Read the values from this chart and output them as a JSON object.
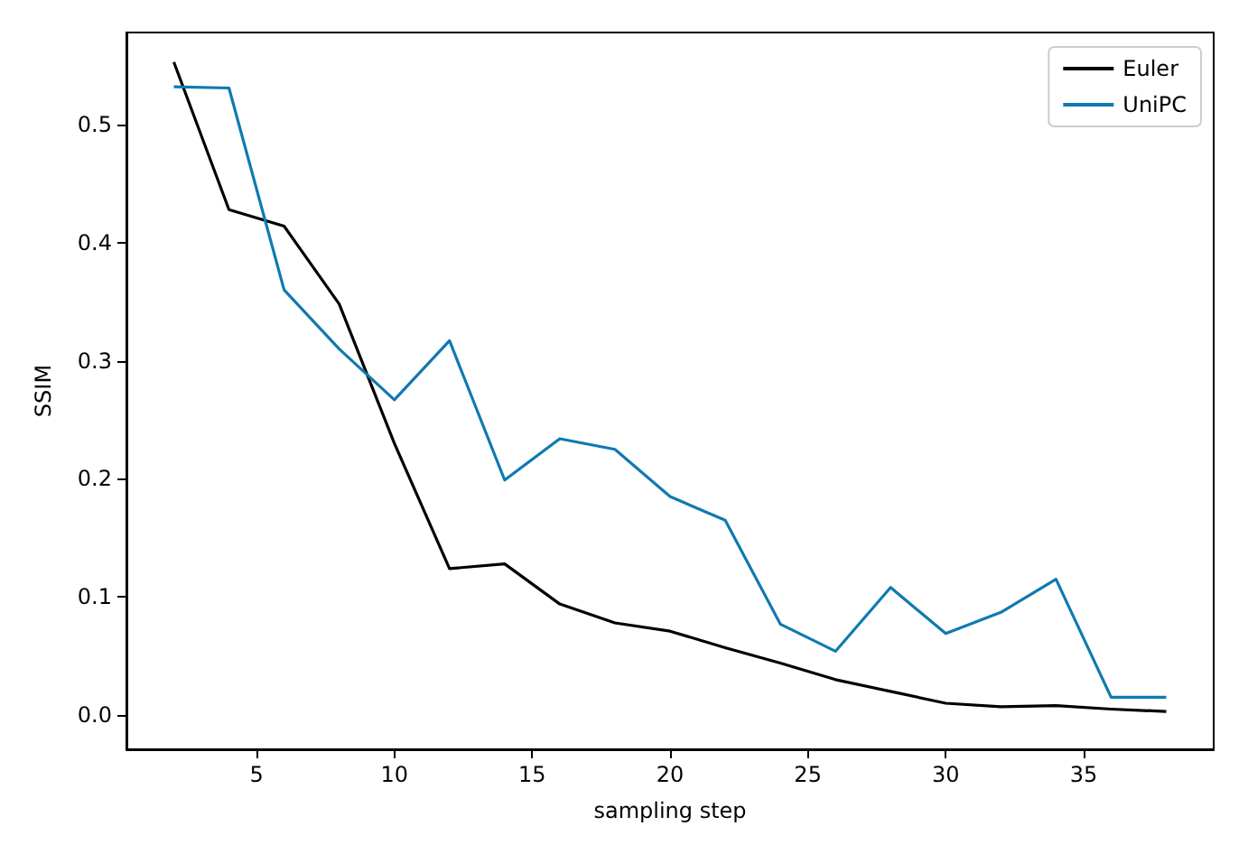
{
  "chart_data": {
    "type": "line",
    "xlabel": "sampling step",
    "ylabel": "SSIM",
    "x": [
      2,
      4,
      6,
      8,
      10,
      12,
      14,
      16,
      18,
      20,
      22,
      24,
      26,
      28,
      30,
      32,
      34,
      36,
      38
    ],
    "series": [
      {
        "name": "Euler",
        "color": "#000000",
        "values": [
          0.553,
          0.428,
          0.414,
          0.348,
          0.23,
          0.124,
          0.128,
          0.094,
          0.078,
          0.071,
          0.057,
          0.044,
          0.03,
          0.02,
          0.01,
          0.007,
          0.008,
          0.005,
          0.003
        ]
      },
      {
        "name": "UniPC",
        "color": "#0f7ab0",
        "values": [
          0.532,
          0.531,
          0.36,
          0.31,
          0.267,
          0.317,
          0.199,
          0.234,
          0.225,
          0.185,
          0.165,
          0.077,
          0.054,
          0.108,
          0.069,
          0.087,
          0.115,
          0.015,
          0.015
        ]
      }
    ],
    "xlim": [
      0.28,
      39.72
    ],
    "xticks": [
      5,
      10,
      15,
      20,
      25,
      30,
      35
    ],
    "ylim": [
      -0.029,
      0.578
    ],
    "yticks": [
      {
        "value": 0,
        "label": "0.0"
      },
      0.1,
      0.2,
      0.3,
      0.4,
      0.5
    ],
    "grid": false,
    "legend": "top right"
  }
}
